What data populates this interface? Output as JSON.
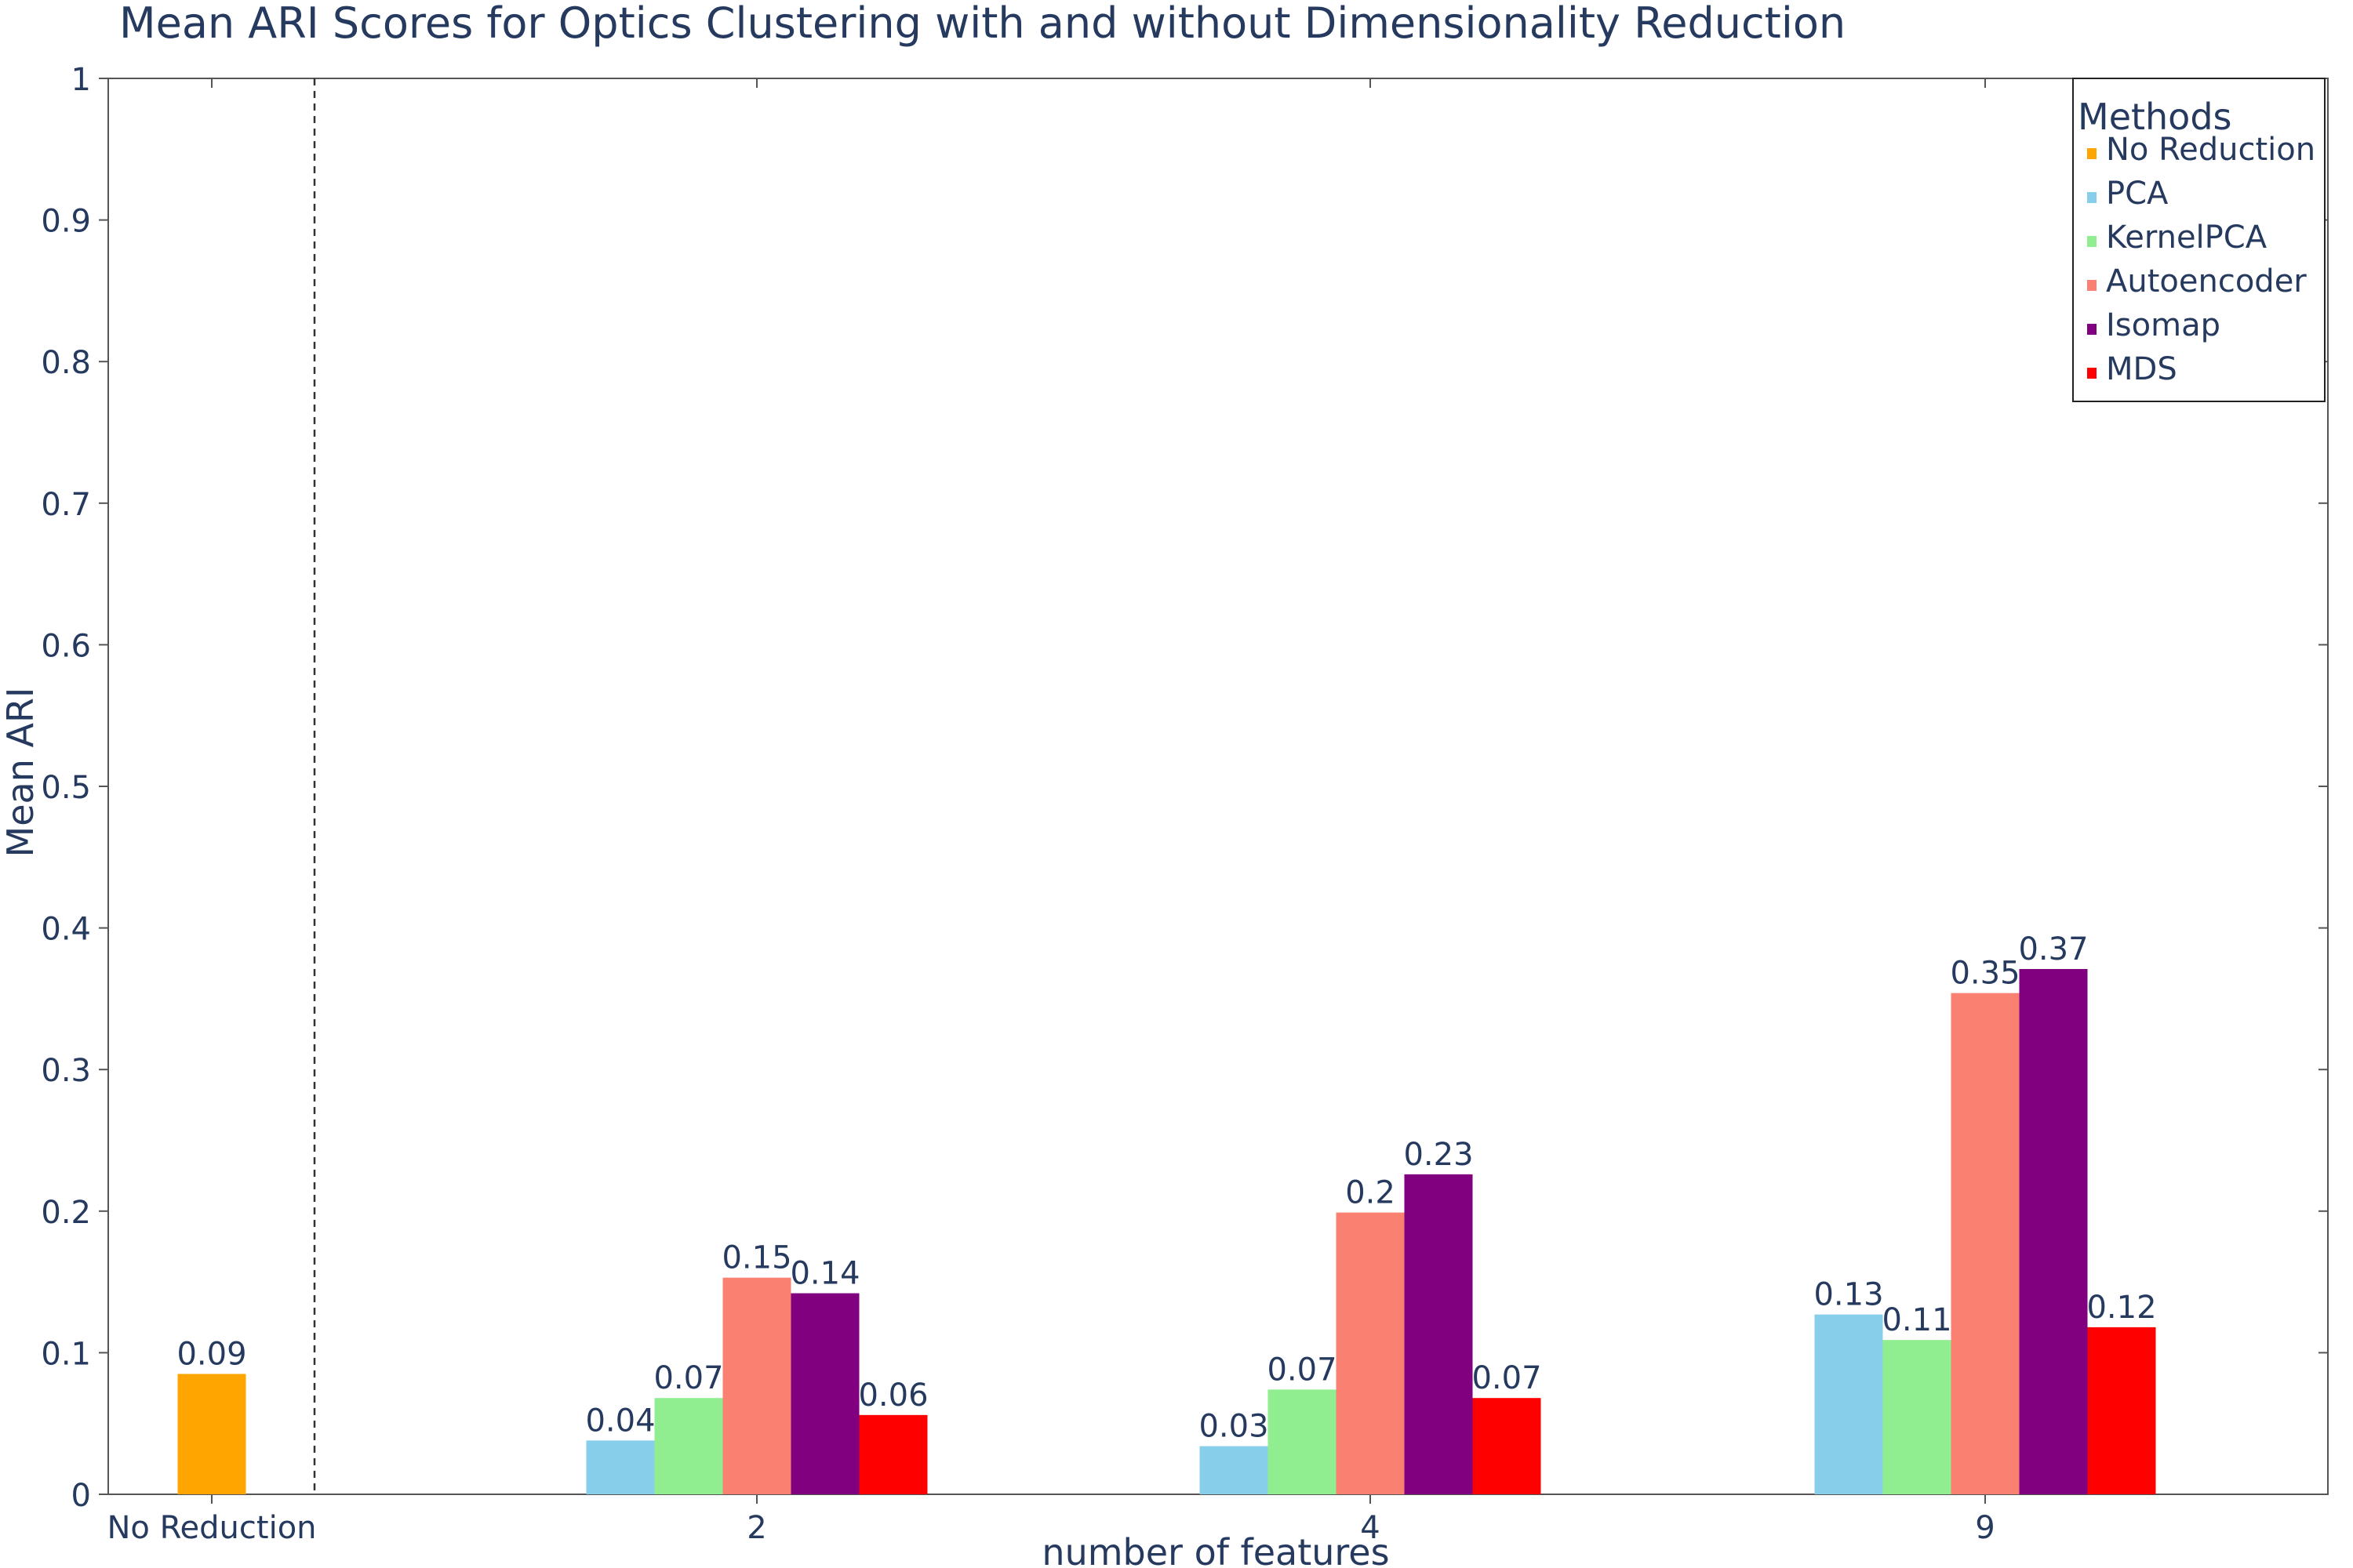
{
  "chart_data": {
    "type": "bar",
    "title": "Mean ARI Scores for Optics Clustering with and without Dimensionality Reduction",
    "xlabel": "number of features",
    "ylabel": "Mean ARI",
    "ylim": [
      0,
      1
    ],
    "yticks": [
      "0",
      "0.1",
      "0.2",
      "0.3",
      "0.4",
      "0.5",
      "0.6",
      "0.7",
      "0.8",
      "0.9",
      "1"
    ],
    "categories": [
      "No Reduction",
      "2",
      "4",
      "9"
    ],
    "series": [
      {
        "name": "No Reduction",
        "color": "#ffa500",
        "values": [
          0.085,
          null,
          null,
          null
        ],
        "labels": [
          "0.09",
          null,
          null,
          null
        ]
      },
      {
        "name": "PCA",
        "color": "#87ceeb",
        "values": [
          null,
          0.038,
          0.034,
          0.127
        ],
        "labels": [
          null,
          "0.04",
          "0.03",
          "0.13"
        ]
      },
      {
        "name": "KernelPCA",
        "color": "#90ee90",
        "values": [
          null,
          0.068,
          0.074,
          0.109
        ],
        "labels": [
          null,
          "0.07",
          "0.07",
          "0.11"
        ]
      },
      {
        "name": "Autoencoder",
        "color": "#fa8072",
        "values": [
          null,
          0.153,
          0.199,
          0.354
        ],
        "labels": [
          null,
          "0.15",
          "0.2",
          "0.35"
        ]
      },
      {
        "name": "Isomap",
        "color": "#800080",
        "values": [
          null,
          0.142,
          0.226,
          0.371
        ],
        "labels": [
          null,
          "0.14",
          "0.23",
          "0.37"
        ]
      },
      {
        "name": "MDS",
        "color": "#ff0000",
        "values": [
          null,
          0.056,
          0.068,
          0.118
        ],
        "labels": [
          null,
          "0.06",
          "0.07",
          "0.12"
        ]
      }
    ],
    "legend": {
      "title": "Methods",
      "position": "top-right"
    },
    "grid": false,
    "separator_after_category": "No Reduction"
  }
}
